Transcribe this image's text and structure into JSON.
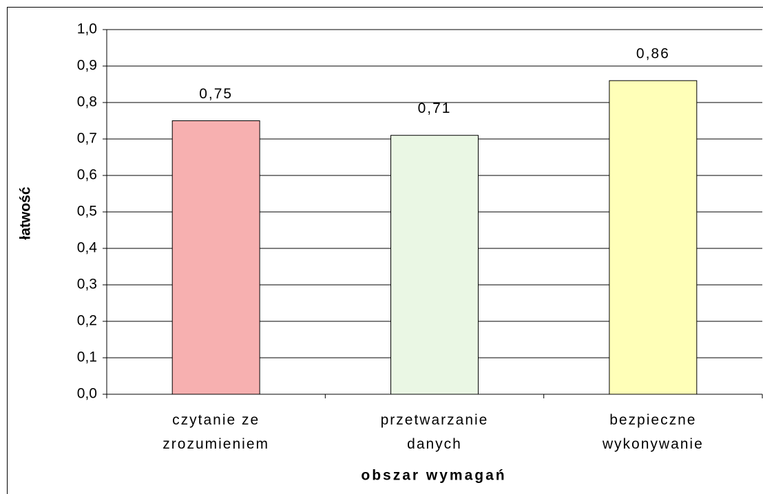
{
  "chart_data": {
    "type": "bar",
    "x_label": "obszar wymagań",
    "y_label": "łatwość",
    "categories": [
      "czytanie ze\nzrozumieniem",
      "przetwarzanie\ndanych",
      "bezpieczne\nwykonywanie"
    ],
    "values": [
      0.75,
      0.71,
      0.86
    ],
    "value_labels": [
      "0,75",
      "0,71",
      "0,86"
    ],
    "colors": [
      "#f7b0b0",
      "#eaf7e4",
      "#ffffb8"
    ],
    "ylim": [
      0,
      1
    ],
    "yticks": [
      {
        "value": 0,
        "label": "0,0"
      },
      {
        "value": 0.1,
        "label": "0,1"
      },
      {
        "value": 0.2,
        "label": "0,2"
      },
      {
        "value": 0.3,
        "label": "0,3"
      },
      {
        "value": 0.4,
        "label": "0,4"
      },
      {
        "value": 0.5,
        "label": "0,5"
      },
      {
        "value": 0.6,
        "label": "0,6"
      },
      {
        "value": 0.7,
        "label": "0,7"
      },
      {
        "value": 0.8,
        "label": "0,8"
      },
      {
        "value": 0.9,
        "label": "0,9"
      },
      {
        "value": 1,
        "label": "1,0"
      }
    ],
    "grid": true
  }
}
